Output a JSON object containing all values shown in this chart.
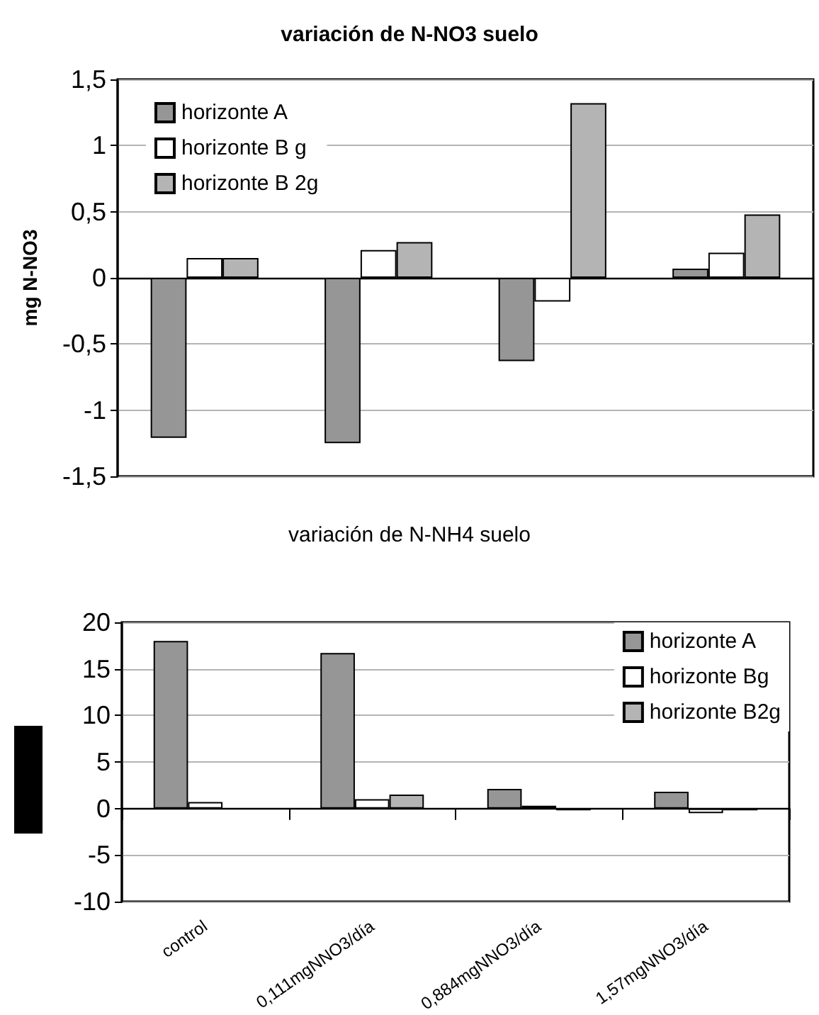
{
  "chart_data": [
    {
      "type": "bar",
      "title": "variación de N-NO3 suelo",
      "ylabel": "mg N-NO3",
      "categories": [
        null,
        null,
        null,
        null
      ],
      "series": [
        {
          "name": "horizonte A",
          "color": "#969696",
          "values": [
            -1.21,
            -1.25,
            -0.63,
            0.07
          ]
        },
        {
          "name": "horizonte B g",
          "color": "#ffffff",
          "values": [
            0.15,
            0.21,
            -0.18,
            0.19
          ]
        },
        {
          "name": "horizonte B 2g",
          "color": "#b4b4b4",
          "values": [
            0.15,
            0.27,
            1.32,
            0.48
          ]
        }
      ],
      "ylim": [
        -1.5,
        1.5
      ],
      "yticks": [
        {
          "value": -1.5,
          "label": "-1,5"
        },
        -1,
        {
          "value": -0.5,
          "label": "-0,5"
        },
        0,
        {
          "value": 0.5,
          "label": "0,5"
        },
        1,
        {
          "value": 1.5,
          "label": "1,5"
        }
      ],
      "grid": "y",
      "legend": "top left",
      "tick_labels": "y"
    },
    {
      "type": "bar",
      "title": "variación de N-NH4 suelo",
      "categories": [
        "control",
        "0,111mgNNO3/día",
        "0,884mgNNO3/día",
        "1,57mgNNO3/día"
      ],
      "series": [
        {
          "name": "horizonte A",
          "color": "#969696",
          "values": [
            18.0,
            16.7,
            2.1,
            1.8
          ]
        },
        {
          "name": "horizonte Bg",
          "color": "#ffffff",
          "values": [
            0.7,
            1.0,
            0.3,
            -0.5
          ]
        },
        {
          "name": "horizonte B2g",
          "color": "#b4b4b4",
          "values": [
            null,
            1.5,
            -0.2,
            -0.2
          ]
        }
      ],
      "ylim": [
        -10,
        20
      ],
      "yticks": [
        -10,
        -5,
        0,
        5,
        10,
        15,
        20
      ],
      "grid": "y",
      "legend": "top right"
    }
  ]
}
